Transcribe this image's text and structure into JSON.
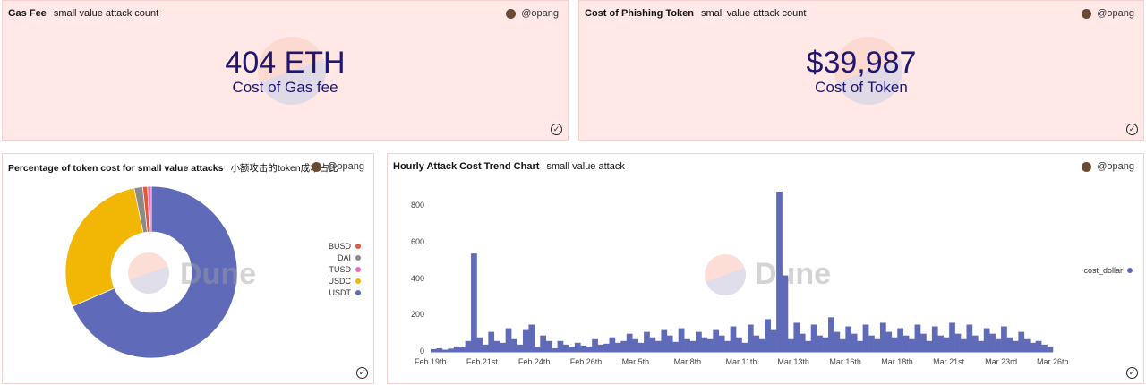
{
  "author": "@opang",
  "cards": [
    {
      "title": "Gas Fee",
      "subtitle": "small value attack count",
      "value": "404 ETH",
      "label": "Cost of Gas fee"
    },
    {
      "title": "Cost of Phishing Token",
      "subtitle": "small value attack count",
      "value": "$39,987",
      "label": "Cost of Token"
    }
  ],
  "pie_card": {
    "title": "Percentage of token cost for small value attacks",
    "subtitle": "小额攻击的token成本占比",
    "watermark": "Dune"
  },
  "trend_card": {
    "title": "Hourly Attack Cost Trend Chart",
    "subtitle": "small value attack",
    "watermark": "Dune"
  },
  "chart_data": [
    {
      "type": "pie",
      "donut": true,
      "categories": [
        "USDT",
        "USDC",
        "DAI",
        "BUSD",
        "TUSD"
      ],
      "values": [
        68.5,
        28.3,
        1.6,
        0.9,
        0.7
      ],
      "colors": [
        "#5f6bb8",
        "#f2b705",
        "#8a8a8a",
        "#e8563a",
        "#e06fbf"
      ],
      "legend": [
        "BUSD",
        "DAI",
        "TUSD",
        "USDC",
        "USDT"
      ],
      "legend_colors": [
        "#e8563a",
        "#8a8a8a",
        "#e06fbf",
        "#f2b705",
        "#5f6bb8"
      ],
      "legend_placement": "right"
    },
    {
      "type": "bar",
      "series_name": "cost_dollar",
      "color": "#5f6bb8",
      "ylim": [
        0,
        880
      ],
      "yticks": [
        0,
        200,
        400,
        600,
        800
      ],
      "xticks": [
        "Feb 19th",
        "Feb 21st",
        "Feb 24th",
        "Feb 26th",
        "Mar 5th",
        "Mar 8th",
        "Mar 11th",
        "Mar 13th",
        "Mar 16th",
        "Mar 18th",
        "Mar 21st",
        "Mar 23rd",
        "Mar 26th"
      ],
      "values": [
        15,
        20,
        12,
        18,
        30,
        25,
        60,
        540,
        80,
        40,
        110,
        60,
        50,
        130,
        70,
        40,
        120,
        150,
        30,
        90,
        60,
        20,
        60,
        40,
        25,
        50,
        35,
        30,
        70,
        40,
        45,
        80,
        50,
        60,
        100,
        70,
        50,
        110,
        80,
        60,
        120,
        90,
        55,
        130,
        70,
        60,
        110,
        80,
        70,
        120,
        90,
        60,
        140,
        80,
        50,
        150,
        90,
        70,
        180,
        120,
        880,
        420,
        70,
        160,
        100,
        60,
        150,
        90,
        80,
        190,
        110,
        70,
        140,
        100,
        60,
        150,
        90,
        70,
        160,
        110,
        80,
        130,
        90,
        70,
        150,
        100,
        60,
        140,
        90,
        80,
        160,
        100,
        70,
        150,
        90,
        60,
        130,
        100,
        70,
        140,
        80,
        60,
        110,
        70,
        50,
        60,
        40,
        30
      ]
    }
  ]
}
